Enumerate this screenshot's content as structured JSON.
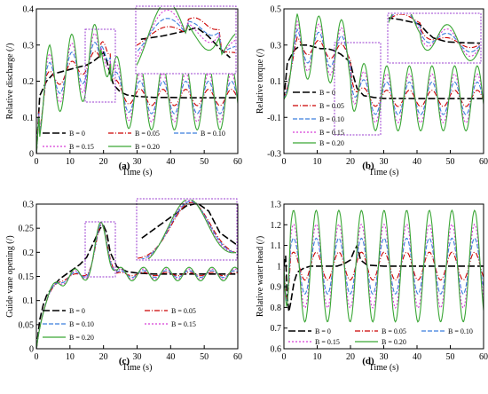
{
  "chart_data": [
    {
      "type": "line",
      "panel_label": "(a)",
      "xlabel": "Time (s)",
      "ylabel": "Relative discharge (/)",
      "xlim": [
        0,
        60
      ],
      "ylim": [
        0,
        0.4
      ],
      "xticks": [
        "0",
        "10",
        "20",
        "30",
        "40",
        "50",
        "60"
      ],
      "yticks": [
        "0",
        "0.1",
        "0.2",
        "0.3",
        "0.4"
      ],
      "inset": "zoom of 15–30 s",
      "series": [
        {
          "name": "B = 0",
          "color": "#000000",
          "dash": "8,3",
          "x": [
            0,
            1,
            3,
            5,
            7,
            9,
            11,
            13,
            15,
            17,
            19,
            20,
            21,
            22,
            23,
            25,
            27,
            30,
            35,
            40,
            45,
            50,
            55,
            60
          ],
          "y": [
            0,
            0.16,
            0.2,
            0.22,
            0.225,
            0.23,
            0.235,
            0.24,
            0.245,
            0.255,
            0.27,
            0.28,
            0.255,
            0.22,
            0.19,
            0.17,
            0.162,
            0.158,
            0.155,
            0.155,
            0.154,
            0.154,
            0.154,
            0.154
          ]
        },
        {
          "name": "B = 0.05",
          "color": "#cc0000",
          "dash": "6,2,1,2"
        },
        {
          "name": "B = 0.10",
          "color": "#3b7ddd",
          "dash": "5,2"
        },
        {
          "name": "B = 0.15",
          "color": "#d63fd6",
          "dash": "2,2"
        },
        {
          "name": "B = 0.20",
          "color": "#3aa635",
          "dash": ""
        }
      ],
      "legend_position": "lower-center"
    },
    {
      "type": "line",
      "panel_label": "(b)",
      "xlabel": "Time (s)",
      "ylabel": "Relative torque (/)",
      "xlim": [
        0,
        60
      ],
      "ylim": [
        -0.3,
        0.5
      ],
      "xticks": [
        "0",
        "10",
        "20",
        "30",
        "40",
        "50",
        "60"
      ],
      "yticks": [
        "-0.3",
        "-0.1",
        "0.1",
        "0.3",
        "0.5"
      ],
      "inset": "zoom of 15–30 s",
      "series": [
        {
          "name": "B = 0",
          "color": "#000000",
          "dash": "8,3",
          "x": [
            0,
            1,
            3,
            5,
            7,
            9,
            11,
            13,
            15,
            17,
            19,
            20,
            21,
            22,
            24,
            27,
            30,
            35,
            40,
            50,
            60
          ],
          "y": [
            0,
            0.2,
            0.27,
            0.3,
            0.3,
            0.29,
            0.28,
            0.28,
            0.27,
            0.25,
            0.22,
            0.2,
            0.12,
            0.06,
            0.02,
            0.01,
            0.005,
            0.005,
            0.004,
            0.004,
            0.004
          ]
        },
        {
          "name": "B = 0.05",
          "color": "#cc0000",
          "dash": "6,2,1,2"
        },
        {
          "name": "B = 0.10",
          "color": "#3b7ddd",
          "dash": "5,2"
        },
        {
          "name": "B = 0.15",
          "color": "#d63fd6",
          "dash": "2,2"
        },
        {
          "name": "B = 0.20",
          "color": "#3aa635",
          "dash": ""
        }
      ],
      "legend_position": "lower-left"
    },
    {
      "type": "line",
      "panel_label": "(c)",
      "xlabel": "Time (s)",
      "ylabel": "Guide vane opening (/)",
      "xlim": [
        0,
        60
      ],
      "ylim": [
        0,
        0.3
      ],
      "xticks": [
        "0",
        "10",
        "20",
        "30",
        "40",
        "50",
        "60"
      ],
      "yticks": [
        "0",
        "0.05",
        "0.1",
        "0.15",
        "0.2",
        "0.25",
        "0.3"
      ],
      "inset": "zoom of 15–30 s",
      "series": [
        {
          "name": "B = 0",
          "color": "#000000",
          "dash": "8,3",
          "x": [
            0,
            1,
            2,
            3,
            5,
            7,
            9,
            11,
            13,
            15,
            17,
            19,
            20,
            21,
            22,
            24,
            27,
            30,
            35,
            40,
            50,
            60
          ],
          "y": [
            0,
            0.06,
            0.09,
            0.11,
            0.13,
            0.145,
            0.155,
            0.165,
            0.175,
            0.19,
            0.22,
            0.25,
            0.255,
            0.24,
            0.2,
            0.17,
            0.16,
            0.157,
            0.155,
            0.155,
            0.155,
            0.155
          ]
        },
        {
          "name": "B = 0.05",
          "color": "#cc0000",
          "dash": "6,2,1,2"
        },
        {
          "name": "B = 0.10",
          "color": "#3b7ddd",
          "dash": "5,2"
        },
        {
          "name": "B = 0.15",
          "color": "#d63fd6",
          "dash": "2,2"
        },
        {
          "name": "B = 0.20",
          "color": "#3aa635",
          "dash": ""
        }
      ],
      "legend_position": "lower-center"
    },
    {
      "type": "line",
      "panel_label": "(d)",
      "xlabel": "Time (s)",
      "ylabel": "Relative water head (/)",
      "xlim": [
        0,
        60
      ],
      "ylim": [
        0.6,
        1.3
      ],
      "xticks": [
        "0",
        "10",
        "20",
        "30",
        "40",
        "50",
        "60"
      ],
      "yticks": [
        "0.6",
        "0.7",
        "0.8",
        "0.9",
        "1",
        "1.1",
        "1.2",
        "1.3"
      ],
      "series": [
        {
          "name": "B = 0",
          "color": "#000000",
          "dash": "8,3",
          "x": [
            0,
            0.5,
            1,
            1.5,
            2,
            3,
            4,
            6,
            8,
            10,
            12,
            14,
            16,
            18,
            20,
            21,
            22,
            23,
            25,
            30,
            40,
            50,
            60
          ],
          "y": [
            1,
            1.05,
            0.85,
            0.78,
            0.82,
            0.92,
            0.97,
            0.99,
            1.0,
            1.0,
            1.0,
            1.0,
            1.0,
            1.01,
            1.03,
            1.07,
            1.1,
            1.03,
            1.005,
            1.0,
            1.0,
            1.0,
            1.0
          ]
        },
        {
          "name": "B = 0.05",
          "color": "#cc0000",
          "dash": "6,2,1,2"
        },
        {
          "name": "B = 0.10",
          "color": "#3b7ddd",
          "dash": "5,2"
        },
        {
          "name": "B = 0.15",
          "color": "#d63fd6",
          "dash": "2,2"
        },
        {
          "name": "B = 0.20",
          "color": "#3aa635",
          "dash": ""
        }
      ],
      "legend_position": "bottom"
    }
  ]
}
